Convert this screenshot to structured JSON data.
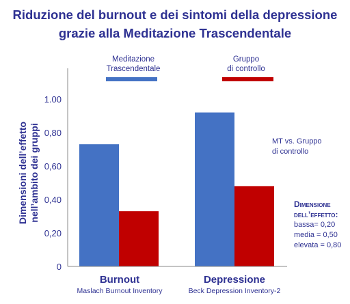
{
  "colors": {
    "mt": "#4472c4",
    "control": "#c00000",
    "text": "#2e3192"
  },
  "chart_data": {
    "type": "bar",
    "title": "Riduzione del burnout e dei sintomi della depressione",
    "subtitle": "grazie alla Meditazione Trascendentale",
    "ylabel_line1": "Dimensioni dell’effetto",
    "ylabel_line2": "nell’ambito dei gruppi",
    "ylim": [
      0,
      1.0
    ],
    "yticks": [
      "0",
      "0,20",
      "0,40",
      "0,60",
      "0,80",
      "1.00"
    ],
    "ytick_values": [
      0,
      0.2,
      0.4,
      0.6,
      0.8,
      1.0
    ],
    "categories": [
      "Burnout",
      "Depressione"
    ],
    "category_subtitles": [
      "Maslach Burnout Inventory",
      "Beck Depression Inventory-2"
    ],
    "legend_placement": "top",
    "series": [
      {
        "name_line1": "Meditazione",
        "name_line2": "Trascendentale",
        "values": [
          0.73,
          0.92
        ]
      },
      {
        "name_line1": "Gruppo",
        "name_line2": "di controllo",
        "values": [
          0.33,
          0.48
        ]
      }
    ]
  },
  "annotation": {
    "line1": "MT vs. Gruppo",
    "line2": "di controllo"
  },
  "effect_size": {
    "heading_line1": "Dimensione",
    "heading_line2": "dell’effetto:",
    "low": "bassa= 0,20",
    "medium": "media = 0,50",
    "high": "elevata = 0,80"
  }
}
